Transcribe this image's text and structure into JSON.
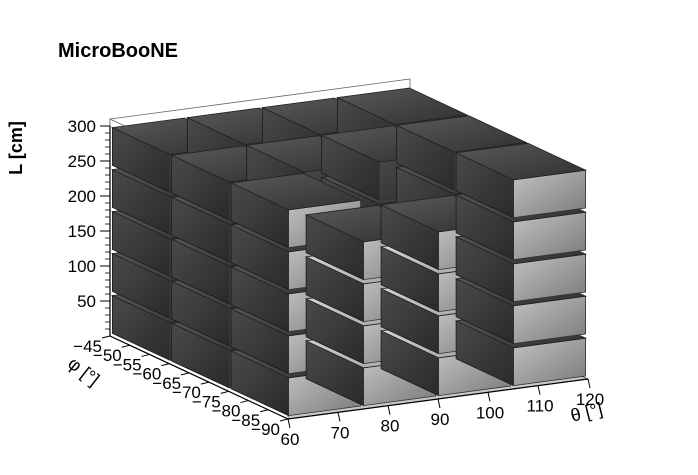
{
  "experiment_label": "MicroBooNE",
  "chart_data": {
    "type": "lego3d",
    "title": "",
    "zlabel": "L [cm]",
    "ylabel": "φ [°]",
    "xlabel": "θ [°]",
    "theta_bins": [
      60,
      75,
      90,
      105,
      120
    ],
    "phi_bins": [
      -45,
      -60,
      -75,
      -90
    ],
    "zlim": [
      0,
      300
    ],
    "theta_ticks": [
      "60",
      "70",
      "80",
      "90",
      "100",
      "110",
      "120"
    ],
    "phi_ticks": [
      "−45",
      "−50",
      "−55",
      "−60",
      "−65",
      "−70",
      "−75",
      "−80",
      "−85",
      "−90"
    ],
    "z_ticks": [
      "50",
      "100",
      "150",
      "200",
      "250",
      "300"
    ],
    "z_tick_values": [
      50,
      100,
      150,
      200,
      250,
      300
    ],
    "columns": [
      {
        "theta": "60-75",
        "phi": "-45 to -60",
        "heights": [
          60,
          120,
          180,
          240,
          300
        ]
      },
      {
        "theta": "60-75",
        "phi": "-60 to -75",
        "heights": [
          60,
          120,
          180,
          240,
          300
        ]
      },
      {
        "theta": "60-75",
        "phi": "-75 to -90",
        "heights": [
          60,
          120,
          180,
          240,
          300
        ]
      },
      {
        "theta": "75-90",
        "phi": "-45 to -60",
        "heights": [
          60,
          120,
          180,
          240,
          300
        ]
      },
      {
        "theta": "75-90",
        "phi": "-60 to -75",
        "heights": [
          60,
          120,
          180,
          240,
          300
        ]
      },
      {
        "theta": "75-90",
        "phi": "-75 to -90",
        "heights": [
          60,
          120,
          180,
          240
        ]
      },
      {
        "theta": "90-105",
        "phi": "-45 to -60",
        "heights": [
          60,
          120,
          180,
          240,
          300
        ]
      },
      {
        "theta": "90-105",
        "phi": "-60 to -75",
        "heights": [
          60,
          120,
          180,
          240,
          300
        ]
      },
      {
        "theta": "90-105",
        "phi": "-75 to -90",
        "heights": [
          60,
          120,
          180,
          240
        ]
      },
      {
        "theta": "105-120",
        "phi": "-45 to -60",
        "heights": [
          60,
          120,
          180,
          240,
          300
        ]
      },
      {
        "theta": "105-120",
        "phi": "-60 to -75",
        "heights": [
          60,
          120,
          180,
          240,
          300
        ]
      },
      {
        "theta": "105-120",
        "phi": "-75 to -90",
        "heights": [
          60,
          120,
          180,
          240,
          300
        ]
      }
    ],
    "colors": {
      "dark_face": "#333333",
      "front_face": "#9e9e9e",
      "floor": "#c8c8c8",
      "axis": "#000000"
    }
  }
}
